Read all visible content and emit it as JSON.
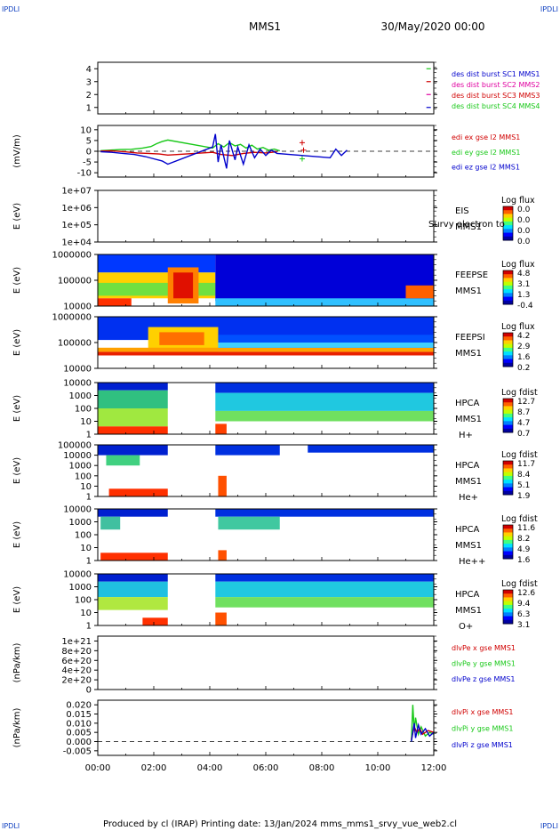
{
  "corners": {
    "tl": "IPDLI",
    "tr": "IPDLI",
    "bl": "IPDLI",
    "br": "IPDLI"
  },
  "header": {
    "spacecraft": "MMS1",
    "date": "30/May/2020 00:00"
  },
  "footer": "Produced by cl (IRAP)   Printing date: 13/Jan/2024   mms_mms1_srvy_vue_web2.cl",
  "colors": {
    "red": "#d00000",
    "magenta": "#e000a0",
    "green": "#18c818",
    "blue": "#0000cc",
    "label_blue": "#1040c0"
  },
  "chart_data": [
    {
      "type": "line",
      "ylim": [
        0.5,
        4.5
      ],
      "yticks": [
        "4",
        "3",
        "2",
        "1"
      ],
      "ylabel": "",
      "legend": [
        {
          "name": "des dist burst SC1 MMS1",
          "color": "#0000cc"
        },
        {
          "name": "des dist burst SC2 MMS2",
          "color": "#e000a0"
        },
        {
          "name": "des dist burst SC3 MMS3",
          "color": "#d00000"
        },
        {
          "name": "des dist burst SC4 MMS4",
          "color": "#18c818"
        }
      ],
      "markers": [
        {
          "t": 11.8,
          "y": 4,
          "color": "#18c818"
        },
        {
          "t": 11.8,
          "y": 3,
          "color": "#d00000"
        },
        {
          "t": 11.8,
          "y": 2,
          "color": "#e000a0"
        },
        {
          "t": 11.8,
          "y": 1,
          "color": "#0000cc"
        }
      ]
    },
    {
      "type": "line",
      "ylabel": "(mV/m)",
      "ylim": [
        -12,
        12
      ],
      "yticks": [
        "10",
        "5",
        "0",
        "-5",
        "-10"
      ],
      "legend": [
        {
          "name": "edi ex gse l2 MMS1",
          "color": "#d00000"
        },
        {
          "name": "edi ey gse l2 MMS1",
          "color": "#18c818"
        },
        {
          "name": "edi ez gse l2 MMS1",
          "color": "#0000cc"
        }
      ],
      "series": [
        {
          "name": "edi ey gse l2 MMS1",
          "color": "#18c818",
          "points": [
            [
              0.1,
              0.3
            ],
            [
              0.4,
              0.5
            ],
            [
              0.8,
              0.8
            ],
            [
              1.2,
              0.9
            ],
            [
              1.6,
              1.5
            ],
            [
              1.9,
              2.2
            ],
            [
              2.1,
              3.5
            ],
            [
              2.3,
              4.5
            ],
            [
              2.5,
              5.2
            ],
            [
              4.1,
              1.5
            ],
            [
              4.3,
              3.5
            ],
            [
              4.5,
              2.0
            ],
            [
              4.7,
              4.0
            ],
            [
              4.9,
              2.5
            ],
            [
              5.1,
              3.2
            ],
            [
              5.3,
              1.5
            ],
            [
              5.5,
              2.8
            ],
            [
              5.7,
              1.0
            ],
            [
              5.9,
              1.8
            ],
            [
              6.1,
              0.5
            ],
            [
              6.3,
              1.0
            ],
            [
              6.5,
              0.2
            ]
          ]
        },
        {
          "name": "edi ex gse l2 MMS1",
          "color": "#d00000",
          "points": [
            [
              0.1,
              0.1
            ],
            [
              0.5,
              0.2
            ],
            [
              1.0,
              -0.3
            ],
            [
              1.4,
              -0.8
            ],
            [
              1.8,
              -1.0
            ],
            [
              2.2,
              -1.3
            ],
            [
              2.5,
              -1.8
            ],
            [
              4.1,
              -0.5
            ],
            [
              4.4,
              -1.5
            ],
            [
              4.8,
              -2.0
            ],
            [
              5.2,
              -1.0
            ],
            [
              5.6,
              -0.5
            ],
            [
              6.0,
              -0.8
            ],
            [
              6.4,
              -0.2
            ]
          ]
        },
        {
          "name": "edi ez gse l2 MMS1",
          "color": "#0000cc",
          "points": [
            [
              0.1,
              -0.2
            ],
            [
              0.5,
              -0.5
            ],
            [
              0.9,
              -1.0
            ],
            [
              1.3,
              -1.5
            ],
            [
              1.7,
              -2.5
            ],
            [
              2.0,
              -3.5
            ],
            [
              2.3,
              -4.5
            ],
            [
              2.5,
              -6.0
            ],
            [
              4.1,
              2.0
            ],
            [
              4.2,
              8.0
            ],
            [
              4.3,
              -5.0
            ],
            [
              4.4,
              3.0
            ],
            [
              4.6,
              -8.0
            ],
            [
              4.7,
              5.0
            ],
            [
              4.9,
              -4.0
            ],
            [
              5.0,
              2.0
            ],
            [
              5.2,
              -6.0
            ],
            [
              5.4,
              3.0
            ],
            [
              5.6,
              -3.0
            ],
            [
              5.8,
              1.0
            ],
            [
              6.0,
              -2.0
            ],
            [
              6.2,
              0.5
            ],
            [
              6.4,
              -1.0
            ],
            [
              8.3,
              -3.0
            ],
            [
              8.5,
              1.0
            ],
            [
              8.7,
              -2.0
            ],
            [
              8.9,
              0.5
            ]
          ]
        }
      ],
      "crosses": [
        {
          "t": 7.3,
          "y": 4,
          "color": "#d00000"
        },
        {
          "t": 7.35,
          "y": 0.5,
          "color": "#d00000"
        },
        {
          "t": 7.3,
          "y": -3.5,
          "color": "#18c818"
        }
      ],
      "zero_line": true
    },
    {
      "type": "heatmap",
      "ylabel": "E (eV)",
      "yticks": [
        "1e+07",
        "1e+06",
        "1e+05",
        "1e+04"
      ],
      "instrument": [
        "EIS",
        "MMS1"
      ],
      "overlay_text": "Survy electron to",
      "colorbar_title": "Log flux",
      "colorbar_ticks": [
        "0.0",
        "0.0",
        "0.0",
        "0.0"
      ],
      "blocks": []
    },
    {
      "type": "heatmap",
      "ylabel": "E (eV)",
      "yticks": [
        "1000000",
        "100000",
        "10000"
      ],
      "instrument": [
        "FEEPSE",
        "MMS1"
      ],
      "colorbar_title": "Log flux",
      "colorbar_ticks": [
        "4.8",
        "3.1",
        "1.3",
        "-0.4"
      ],
      "blocks": [
        {
          "t0": 0.0,
          "t1": 4.2,
          "lo": 0.0,
          "hi": 0.35,
          "color": "#0038ff"
        },
        {
          "t0": 0.0,
          "t1": 4.2,
          "lo": 0.35,
          "hi": 0.85,
          "color": "#ffd000"
        },
        {
          "t0": 0.0,
          "t1": 4.2,
          "lo": 0.55,
          "hi": 0.8,
          "color": "#70e040"
        },
        {
          "t0": 2.5,
          "t1": 3.6,
          "lo": 0.25,
          "hi": 0.95,
          "color": "#ff8000"
        },
        {
          "t0": 2.7,
          "t1": 3.4,
          "lo": 0.35,
          "hi": 0.85,
          "color": "#e01000"
        },
        {
          "t0": 0.0,
          "t1": 1.2,
          "lo": 0.85,
          "hi": 1.0,
          "color": "#ff3000"
        },
        {
          "t0": 4.2,
          "t1": 12.0,
          "lo": 0.0,
          "hi": 0.9,
          "color": "#0000d8"
        },
        {
          "t0": 4.2,
          "t1": 12.0,
          "lo": 0.85,
          "hi": 1.0,
          "color": "#30c0ff"
        },
        {
          "t0": 11.0,
          "t1": 12.0,
          "lo": 0.6,
          "hi": 0.85,
          "color": "#ff6000"
        }
      ]
    },
    {
      "type": "heatmap",
      "ylabel": "E (eV)",
      "yticks": [
        "1000000",
        "100000",
        "10000"
      ],
      "instrument": [
        "FEEPSI",
        "MMS1"
      ],
      "colorbar_title": "Log flux",
      "colorbar_ticks": [
        "4.2",
        "2.9",
        "1.6",
        "0.2"
      ],
      "blocks": [
        {
          "t0": 0.0,
          "t1": 12.0,
          "lo": 0.0,
          "hi": 0.45,
          "color": "#0030f0"
        },
        {
          "t0": 1.8,
          "t1": 4.3,
          "lo": 0.2,
          "hi": 0.7,
          "color": "#ffd000"
        },
        {
          "t0": 2.2,
          "t1": 3.8,
          "lo": 0.3,
          "hi": 0.55,
          "color": "#ff7000"
        },
        {
          "t0": 0.0,
          "t1": 12.0,
          "lo": 0.68,
          "hi": 0.75,
          "color": "#e82000"
        },
        {
          "t0": 0.0,
          "t1": 12.0,
          "lo": 0.6,
          "hi": 0.68,
          "color": "#ffa000"
        },
        {
          "t0": 4.3,
          "t1": 12.0,
          "lo": 0.35,
          "hi": 0.6,
          "color": "#0050ff"
        },
        {
          "t0": 4.3,
          "t1": 12.0,
          "lo": 0.5,
          "hi": 0.6,
          "color": "#40d0ff"
        }
      ]
    },
    {
      "type": "heatmap",
      "ylabel": "E (eV)",
      "yticks": [
        "10000",
        "1000",
        "100",
        "10",
        "1"
      ],
      "instrument": [
        "HPCA",
        "MMS1",
        "H+"
      ],
      "colorbar_title": "Log fdist",
      "colorbar_ticks": [
        "12.7",
        "8.7",
        "4.7",
        "0.7"
      ],
      "blocks": [
        {
          "t0": 0.0,
          "t1": 2.5,
          "lo": 0.0,
          "hi": 0.15,
          "color": "#0020d0"
        },
        {
          "t0": 0.0,
          "t1": 2.5,
          "lo": 0.15,
          "hi": 0.5,
          "color": "#30c080"
        },
        {
          "t0": 0.0,
          "t1": 2.5,
          "lo": 0.5,
          "hi": 0.85,
          "color": "#a0e840"
        },
        {
          "t0": 0.0,
          "t1": 2.5,
          "lo": 0.85,
          "hi": 1.0,
          "color": "#ff3000"
        },
        {
          "t0": 4.2,
          "t1": 12.0,
          "lo": 0.0,
          "hi": 0.2,
          "color": "#0030e0"
        },
        {
          "t0": 4.2,
          "t1": 12.0,
          "lo": 0.2,
          "hi": 0.55,
          "color": "#20c8e0"
        },
        {
          "t0": 4.2,
          "t1": 12.0,
          "lo": 0.55,
          "hi": 0.75,
          "color": "#70e060"
        },
        {
          "t0": 4.2,
          "t1": 4.6,
          "lo": 0.8,
          "hi": 1.0,
          "color": "#ff4000"
        }
      ]
    },
    {
      "type": "heatmap",
      "ylabel": "E (eV)",
      "yticks": [
        "100000",
        "10000",
        "1000",
        "100",
        "10",
        "1"
      ],
      "instrument": [
        "HPCA",
        "MMS1",
        "He+"
      ],
      "colorbar_title": "Log fdist",
      "colorbar_ticks": [
        "11.7",
        "8.4",
        "5.1",
        "1.9"
      ],
      "blocks": [
        {
          "t0": 0.0,
          "t1": 2.5,
          "lo": 0.0,
          "hi": 0.2,
          "color": "#0020d0"
        },
        {
          "t0": 0.3,
          "t1": 1.5,
          "lo": 0.2,
          "hi": 0.4,
          "color": "#40d080"
        },
        {
          "t0": 0.4,
          "t1": 2.5,
          "lo": 0.85,
          "hi": 1.0,
          "color": "#ff3000"
        },
        {
          "t0": 4.2,
          "t1": 6.5,
          "lo": 0.0,
          "hi": 0.2,
          "color": "#0030e0"
        },
        {
          "t0": 4.3,
          "t1": 4.6,
          "lo": 0.6,
          "hi": 1.0,
          "color": "#ff5000"
        },
        {
          "t0": 7.5,
          "t1": 12.0,
          "lo": 0.0,
          "hi": 0.15,
          "color": "#0030e0"
        }
      ]
    },
    {
      "type": "heatmap",
      "ylabel": "E (eV)",
      "yticks": [
        "10000",
        "1000",
        "100",
        "10",
        "1"
      ],
      "instrument": [
        "HPCA",
        "MMS1",
        "He++"
      ],
      "colorbar_title": "Log fdist",
      "colorbar_ticks": [
        "11.6",
        "8.2",
        "4.9",
        "1.6"
      ],
      "blocks": [
        {
          "t0": 0.0,
          "t1": 2.5,
          "lo": 0.0,
          "hi": 0.15,
          "color": "#0020d0"
        },
        {
          "t0": 0.1,
          "t1": 0.8,
          "lo": 0.15,
          "hi": 0.4,
          "color": "#40c0a0"
        },
        {
          "t0": 0.1,
          "t1": 2.5,
          "lo": 0.85,
          "hi": 1.0,
          "color": "#ff3000"
        },
        {
          "t0": 4.2,
          "t1": 12.0,
          "lo": 0.0,
          "hi": 0.15,
          "color": "#0030e0"
        },
        {
          "t0": 4.3,
          "t1": 6.5,
          "lo": 0.15,
          "hi": 0.4,
          "color": "#40c8a0"
        },
        {
          "t0": 4.3,
          "t1": 4.6,
          "lo": 0.8,
          "hi": 1.0,
          "color": "#ff5000"
        }
      ]
    },
    {
      "type": "heatmap",
      "ylabel": "E (eV)",
      "yticks": [
        "10000",
        "1000",
        "100",
        "10",
        "1"
      ],
      "instrument": [
        "HPCA",
        "MMS1",
        "O+"
      ],
      "colorbar_title": "Log fdist",
      "colorbar_ticks": [
        "12.6",
        "9.4",
        "6.3",
        "3.1"
      ],
      "blocks": [
        {
          "t0": 0.0,
          "t1": 2.5,
          "lo": 0.0,
          "hi": 0.15,
          "color": "#0020d0"
        },
        {
          "t0": 0.0,
          "t1": 2.5,
          "lo": 0.15,
          "hi": 0.45,
          "color": "#20c0e0"
        },
        {
          "t0": 0.0,
          "t1": 2.5,
          "lo": 0.45,
          "hi": 0.7,
          "color": "#b0e840"
        },
        {
          "t0": 1.6,
          "t1": 2.5,
          "lo": 0.85,
          "hi": 1.0,
          "color": "#ff3000"
        },
        {
          "t0": 4.2,
          "t1": 12.0,
          "lo": 0.0,
          "hi": 0.15,
          "color": "#0030e0"
        },
        {
          "t0": 4.2,
          "t1": 12.0,
          "lo": 0.15,
          "hi": 0.45,
          "color": "#20c8e0"
        },
        {
          "t0": 4.2,
          "t1": 12.0,
          "lo": 0.45,
          "hi": 0.65,
          "color": "#70e060"
        },
        {
          "t0": 4.2,
          "t1": 4.6,
          "lo": 0.75,
          "hi": 1.0,
          "color": "#ff5000"
        }
      ]
    },
    {
      "type": "line",
      "ylabel": "(nPa/km)",
      "ylim": [
        0,
        1.1e+21
      ],
      "yticks": [
        "1e+21",
        "8e+20",
        "6e+20",
        "4e+20",
        "2e+20",
        "0"
      ],
      "legend": [
        {
          "name": "dlvPe x gse MMS1",
          "color": "#d00000"
        },
        {
          "name": "dlvPe y gse MMS1",
          "color": "#18c818"
        },
        {
          "name": "dlvPe z gse MMS1",
          "color": "#0000cc"
        }
      ],
      "series": [],
      "zero_line": true
    },
    {
      "type": "line",
      "ylabel": "(nPa/km)",
      "ylim": [
        -0.0075,
        0.0225
      ],
      "yticks": [
        "0.020",
        "0.015",
        "0.010",
        "0.005",
        "0.000",
        "-0.005"
      ],
      "legend": [
        {
          "name": "dlvPi x gse MMS1",
          "color": "#d00000"
        },
        {
          "name": "dlvPi y gse MMS1",
          "color": "#18c818"
        },
        {
          "name": "dlvPi z gse MMS1",
          "color": "#0000cc"
        }
      ],
      "series": [
        {
          "name": "dlvPi y gse MMS1",
          "color": "#18c818",
          "points": [
            [
              11.2,
              0.0
            ],
            [
              11.25,
              0.02
            ],
            [
              11.3,
              0.006
            ],
            [
              11.35,
              0.013
            ],
            [
              11.45,
              0.004
            ],
            [
              11.55,
              0.008
            ],
            [
              11.7,
              0.003
            ],
            [
              11.85,
              0.005
            ],
            [
              12.0,
              0.004
            ]
          ]
        },
        {
          "name": "dlvPi x gse MMS1",
          "color": "#d00000",
          "points": [
            [
              11.2,
              0.001
            ],
            [
              11.3,
              0.008
            ],
            [
              11.4,
              0.005
            ],
            [
              11.5,
              0.007
            ],
            [
              11.6,
              0.004
            ],
            [
              11.8,
              0.006
            ],
            [
              12.0,
              0.005
            ]
          ]
        },
        {
          "name": "dlvPi z gse MMS1",
          "color": "#0000cc",
          "points": [
            [
              11.2,
              0.0
            ],
            [
              11.3,
              0.01
            ],
            [
              11.35,
              0.002
            ],
            [
              11.45,
              0.009
            ],
            [
              11.55,
              0.004
            ],
            [
              11.7,
              0.007
            ],
            [
              11.85,
              0.003
            ],
            [
              12.0,
              0.005
            ]
          ]
        }
      ],
      "zero_line": true
    }
  ],
  "xaxis": {
    "range": [
      0,
      12
    ],
    "ticks": [
      "00:00",
      "02:00",
      "04:00",
      "06:00",
      "08:00",
      "10:00",
      "12:00"
    ]
  }
}
